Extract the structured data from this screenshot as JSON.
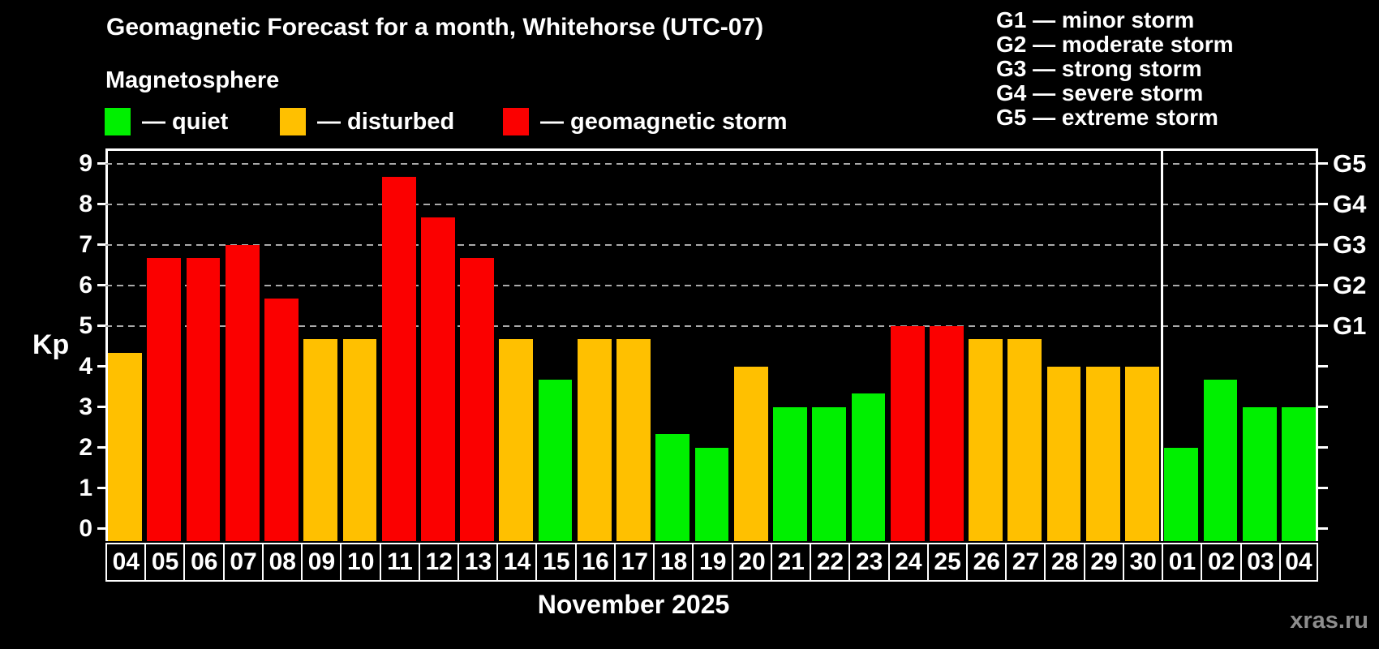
{
  "header": {
    "title": "Geomagnetic Forecast for a month, Whitehorse (UTC-07)",
    "subtitle": "Magnetosphere"
  },
  "legend": {
    "items": [
      {
        "key": "quiet",
        "label": "— quiet",
        "color": "#00f000"
      },
      {
        "key": "disturbed",
        "label": "— disturbed",
        "color": "#ffc000"
      },
      {
        "key": "storm",
        "label": "— geomagnetic storm",
        "color": "#fb0000"
      }
    ]
  },
  "g_scale_legend": {
    "lines": [
      "G1 — minor storm",
      "G2 — moderate storm",
      "G3 — strong storm",
      "G4 — severe storm",
      "G5 — extreme storm"
    ]
  },
  "chart_data": {
    "type": "bar",
    "title": "Geomagnetic Forecast for a month, Whitehorse (UTC-07)",
    "ylabel": "Kp",
    "xlabel": "November 2025",
    "categories": [
      "04",
      "05",
      "06",
      "07",
      "08",
      "09",
      "10",
      "11",
      "12",
      "13",
      "14",
      "15",
      "16",
      "17",
      "18",
      "19",
      "20",
      "21",
      "22",
      "23",
      "24",
      "25",
      "26",
      "27",
      "28",
      "29",
      "30",
      "01",
      "02",
      "03",
      "04"
    ],
    "values": [
      4.33,
      6.67,
      6.67,
      7.0,
      5.67,
      4.67,
      4.67,
      8.67,
      7.67,
      6.67,
      4.67,
      3.67,
      4.67,
      4.67,
      2.33,
      2.0,
      4.0,
      3.0,
      3.0,
      3.33,
      5.0,
      5.0,
      4.67,
      4.67,
      4.0,
      4.0,
      4.0,
      2.0,
      3.67,
      3.0,
      3.0
    ],
    "statuses": [
      "disturbed",
      "storm",
      "storm",
      "storm",
      "storm",
      "disturbed",
      "disturbed",
      "storm",
      "storm",
      "storm",
      "disturbed",
      "quiet",
      "disturbed",
      "disturbed",
      "quiet",
      "quiet",
      "disturbed",
      "quiet",
      "quiet",
      "quiet",
      "storm",
      "storm",
      "disturbed",
      "disturbed",
      "disturbed",
      "disturbed",
      "disturbed",
      "quiet",
      "quiet",
      "quiet",
      "quiet"
    ],
    "status_colors": {
      "quiet": "#00f000",
      "disturbed": "#ffc000",
      "storm": "#fb0000"
    },
    "status_thresholds": {
      "disturbed_min_kp": 4,
      "storm_min_kp": 5
    },
    "ylim": [
      -0.31,
      9.37
    ],
    "yticks": [
      0,
      1,
      2,
      3,
      4,
      5,
      6,
      7,
      8,
      9
    ],
    "gridlines": [
      5,
      6,
      7,
      8,
      9
    ],
    "grid_on": true,
    "right_axis": {
      "labels": [
        "G1",
        "G2",
        "G3",
        "G4",
        "G5"
      ],
      "positions": [
        5,
        6,
        7,
        8,
        9
      ]
    },
    "month_split_index": 27,
    "legend_position": "top"
  },
  "footer": {
    "month_label": "November 2025",
    "watermark": "xras.ru"
  }
}
